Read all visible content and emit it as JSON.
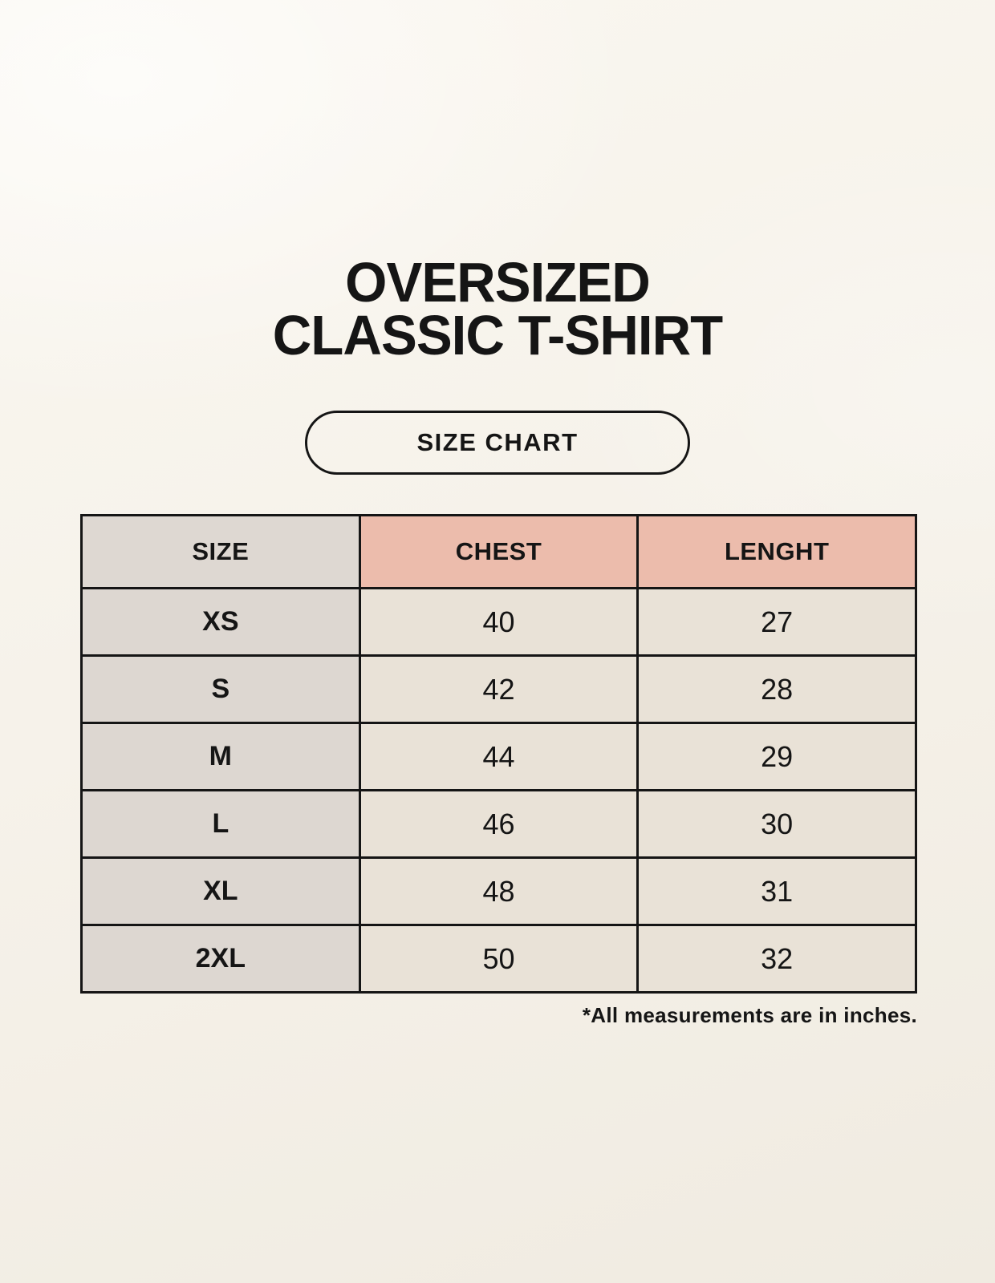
{
  "header": {
    "title_line1": "OVERSIZED",
    "title_line2": "CLASSIC T-SHIRT",
    "button_label": "SIZE CHART"
  },
  "footnote": "*All measurements are in inches.",
  "chart_data": {
    "type": "table",
    "title": "OVERSIZED CLASSIC T-SHIRT — SIZE CHART",
    "columns": [
      "SIZE",
      "CHEST",
      "LENGHT"
    ],
    "rows": [
      {
        "size": "XS",
        "chest": 40,
        "length": 27
      },
      {
        "size": "S",
        "chest": 42,
        "length": 28
      },
      {
        "size": "M",
        "chest": 44,
        "length": 29
      },
      {
        "size": "L",
        "chest": 46,
        "length": 30
      },
      {
        "size": "XL",
        "chest": 48,
        "length": 31
      },
      {
        "size": "2XL",
        "chest": 50,
        "length": 32
      }
    ],
    "units_note": "*All measurements are in inches."
  },
  "colors": {
    "background": "#f6f2ea",
    "ink": "#151515",
    "header_size_bg": "#ded8d2",
    "header_measure_bg": "#ecbcac",
    "body_size_bg": "#ddd7d1",
    "body_value_bg": "#e9e2d7"
  }
}
